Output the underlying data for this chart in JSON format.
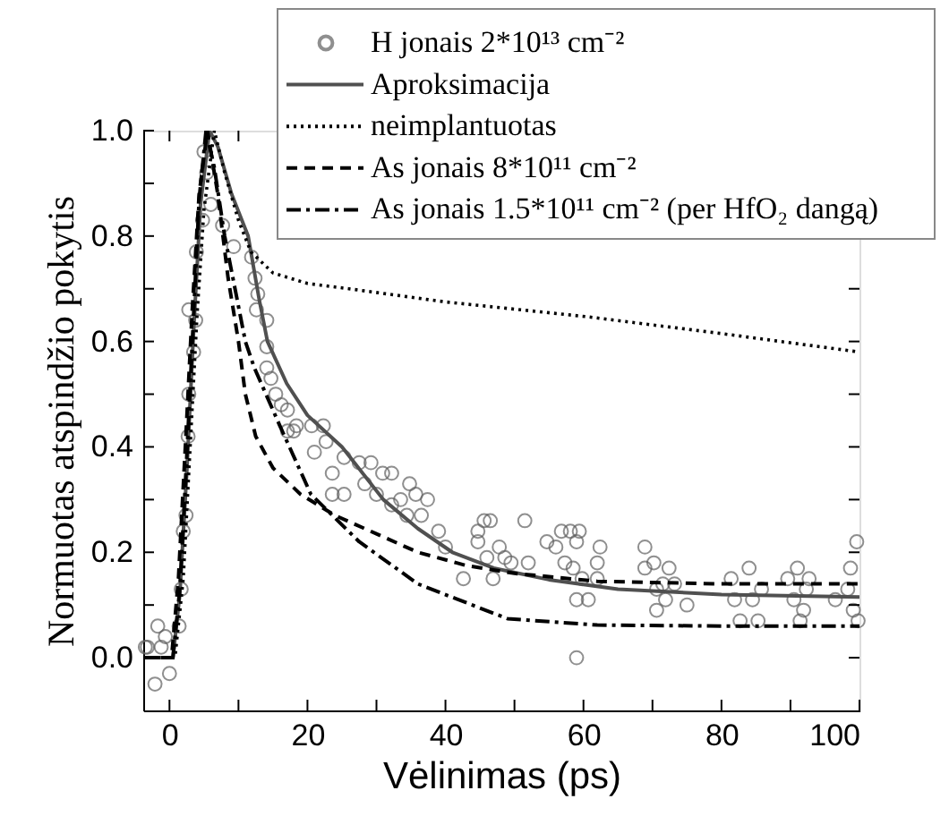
{
  "chart_data": {
    "type": "line",
    "xlabel": "Vėlinimas (ps)",
    "ylabel": "Normuotas atspindžio pokytis",
    "xlim": [
      -3.8,
      100
    ],
    "ylim": [
      -0.1,
      1.0
    ],
    "xticks": [
      0,
      {
        "value": 10,
        "label": null
      },
      20,
      {
        "value": 30,
        "label": null
      },
      40,
      {
        "value": 50,
        "label": null
      },
      60,
      {
        "value": 70,
        "label": null
      },
      80,
      {
        "value": 90,
        "label": null
      },
      100
    ],
    "yticks": [
      {
        "value": 0,
        "label": "0.0"
      },
      {
        "value": 0.1,
        "label": null
      },
      0.2,
      {
        "value": 0.3,
        "label": null
      },
      0.4,
      {
        "value": 0.5,
        "label": null
      },
      0.6,
      {
        "value": 0.7,
        "label": null
      },
      0.8,
      {
        "value": 0.9,
        "label": null
      },
      {
        "value": 1,
        "label": "1.0"
      }
    ],
    "grid": false,
    "legend": "top right",
    "series": [
      {
        "name": "H jonais 2*10¹³ cm⁻²",
        "type": "scatter",
        "marker": "circle",
        "color": "#606060",
        "x": [
          -3.5,
          -3.2,
          -2.1,
          -1.7,
          -1.2,
          -0.6,
          0,
          1.4,
          1.7,
          2.0,
          2.4,
          2.7,
          2.8,
          2.8,
          3.5,
          3.8,
          3.9,
          4.8,
          5.0,
          5.4,
          6.0,
          7.7,
          9.3,
          11.9,
          12.4,
          12.6,
          12.8,
          14.1,
          14.1,
          14.1,
          14.7,
          15.4,
          16.2,
          17.1,
          17.1,
          18,
          18.4,
          20.6,
          21,
          22.3,
          22.7,
          23.6,
          23.6,
          25.3,
          25.3,
          27.5,
          28.3,
          29.2,
          30,
          30.9,
          32.2,
          32.2,
          33.5,
          34.4,
          34.8,
          35.7,
          36.5,
          37.4,
          39,
          40,
          42.6,
          44.7,
          44.7,
          45.6,
          46,
          46.5,
          46.9,
          47.8,
          48.6,
          49.5,
          51.5,
          52,
          54.7,
          56,
          56.8,
          57.3,
          58.1,
          58.5,
          59,
          59,
          59,
          59.4,
          59.8,
          60.7,
          62,
          62,
          62.4,
          68.9,
          68.9,
          70.2,
          70.6,
          70.6,
          71.5,
          71.9,
          72.4,
          73.2,
          75,
          81.4,
          81.9,
          82.7,
          84,
          84.5,
          85.3,
          85.8,
          89.6,
          90.5,
          91,
          91.4,
          91.9,
          92.3,
          92.7,
          96.5,
          98.3,
          98.7,
          99.1,
          99.6,
          99.8
        ],
        "values": [
          0.02,
          0.02,
          -0.05,
          0.06,
          0.02,
          0.04,
          -0.03,
          0.06,
          0.13,
          0.24,
          0.27,
          0.42,
          0.5,
          0.66,
          0.58,
          0.64,
          0.77,
          0.83,
          0.96,
          0.92,
          0.86,
          0.82,
          0.78,
          0.76,
          0.72,
          0.66,
          0.69,
          0.64,
          0.59,
          0.55,
          0.53,
          0.5,
          0.48,
          0.47,
          0.43,
          0.43,
          0.44,
          0.44,
          0.39,
          0.44,
          0.41,
          0.35,
          0.31,
          0.31,
          0.38,
          0.37,
          0.33,
          0.37,
          0.31,
          0.35,
          0.35,
          0.29,
          0.3,
          0.27,
          0.33,
          0.31,
          0.27,
          0.3,
          0.24,
          0.21,
          0.15,
          0.24,
          0.22,
          0.26,
          0.19,
          0.26,
          0.15,
          0.21,
          0.19,
          0.18,
          0.26,
          0.18,
          0.22,
          0.21,
          0.24,
          0.18,
          0.24,
          0.17,
          0.22,
          0.11,
          0.0,
          0.24,
          0.15,
          0.11,
          0.18,
          0.15,
          0.21,
          0.21,
          0.17,
          0.18,
          0.13,
          0.09,
          0.14,
          0.11,
          0.17,
          0.14,
          0.1,
          0.15,
          0.11,
          0.07,
          0.17,
          0.11,
          0.07,
          0.13,
          0.15,
          0.11,
          0.17,
          0.07,
          0.09,
          0.13,
          0.15,
          0.11,
          0.13,
          0.17,
          0.09,
          0.22,
          0.07
        ]
      },
      {
        "name": "Aproksimacija",
        "line_style": "solid",
        "color": "#505050",
        "x": [
          -3.8,
          0.5,
          1.5,
          2.5,
          3.5,
          4.5,
          5.8,
          7,
          9,
          11.4,
          13,
          14.2,
          17,
          20,
          25,
          31,
          36,
          41,
          47,
          55,
          65,
          80,
          100
        ],
        "values": [
          0,
          0,
          0.12,
          0.35,
          0.62,
          0.86,
          1.0,
          0.97,
          0.88,
          0.8,
          0.68,
          0.6,
          0.52,
          0.46,
          0.4,
          0.3,
          0.245,
          0.2,
          0.17,
          0.148,
          0.13,
          0.12,
          0.115
        ]
      },
      {
        "name": "neimplantuotas",
        "line_style": "dotted",
        "color": "#000000",
        "x": [
          -3.8,
          0.8,
          2,
          3,
          4,
          5,
          6.5,
          8,
          10,
          11.8,
          15,
          20,
          26,
          40,
          60.5,
          80,
          100
        ],
        "values": [
          0,
          0,
          0.15,
          0.4,
          0.65,
          0.85,
          1.0,
          0.92,
          0.83,
          0.77,
          0.73,
          0.71,
          0.7,
          0.675,
          0.647,
          0.615,
          0.58
        ]
      },
      {
        "name": "As jonais  8*10¹¹ cm⁻²",
        "line_style": "dashed",
        "color": "#000000",
        "x": [
          -3.8,
          0.3,
          1.3,
          2.3,
          3.3,
          4.3,
          5.5,
          7,
          8.5,
          10,
          11,
          12.5,
          15,
          19,
          24,
          30,
          36,
          43,
          50,
          62,
          80,
          100
        ],
        "values": [
          0,
          0,
          0.15,
          0.4,
          0.66,
          0.88,
          1.0,
          0.88,
          0.72,
          0.6,
          0.5,
          0.42,
          0.36,
          0.31,
          0.27,
          0.235,
          0.2,
          0.175,
          0.16,
          0.145,
          0.14,
          0.14
        ]
      },
      {
        "name": "As jonais 1.5*10¹¹ cm⁻² (per HfO₂ dangą)",
        "line_style": "dashdot",
        "color": "#000000",
        "x": [
          -3.8,
          0.5,
          1.5,
          2.5,
          3.5,
          4.3,
          5.3,
          6.5,
          8,
          11,
          12.3,
          16,
          20.5,
          27.5,
          36,
          49,
          62,
          80,
          100
        ],
        "values": [
          0,
          0,
          0.13,
          0.38,
          0.65,
          0.87,
          1.0,
          0.93,
          0.8,
          0.6,
          0.55,
          0.44,
          0.31,
          0.22,
          0.14,
          0.074,
          0.062,
          0.06,
          0.06
        ]
      }
    ]
  }
}
